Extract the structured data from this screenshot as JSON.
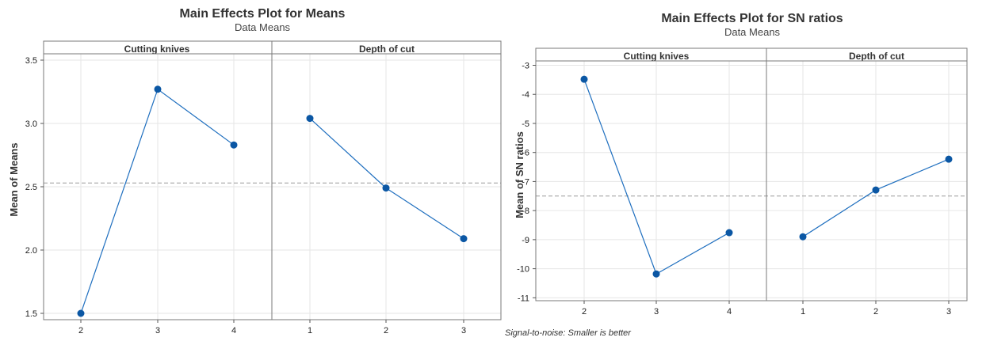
{
  "chart_data": [
    {
      "type": "line",
      "title": "Main Effects Plot for Means",
      "subtitle": "Data Means",
      "xlabel": "",
      "ylabel": "Mean of Means",
      "ylim": [
        1.45,
        3.55
      ],
      "yticks": [
        1.5,
        2.0,
        2.5,
        3.0,
        3.5
      ],
      "ytick_labels": [
        "1.5",
        "2.0",
        "2.5",
        "3.0",
        "3.5"
      ],
      "reference_line": 2.53,
      "grid": true,
      "panels": [
        {
          "name": "Cutting knives",
          "x": [
            "2",
            "3",
            "4"
          ],
          "y": [
            1.5,
            3.27,
            2.83
          ]
        },
        {
          "name": "Depth of cut",
          "x": [
            "1",
            "2",
            "3"
          ],
          "y": [
            3.04,
            2.49,
            2.09
          ]
        }
      ],
      "line_color": "#1f6fbf",
      "marker_color": "#0b57a4",
      "reference_color": "#9a9a9a"
    },
    {
      "type": "line",
      "title": "Main Effects Plot for SN ratios",
      "subtitle": "Data Means",
      "xlabel": "",
      "ylabel": "Mean of SN ratios",
      "ylim": [
        -11.1,
        -2.85
      ],
      "yticks": [
        -3,
        -4,
        -5,
        -6,
        -7,
        -8,
        -9,
        -10,
        -11
      ],
      "ytick_labels": [
        "-3",
        "-4",
        "-5",
        "-6",
        "-7",
        "-8",
        "-9",
        "-10",
        "-11"
      ],
      "reference_line": -7.5,
      "grid": true,
      "panels": [
        {
          "name": "Cutting knives",
          "x": [
            "2",
            "3",
            "4"
          ],
          "y": [
            -3.48,
            -10.18,
            -8.76
          ]
        },
        {
          "name": "Depth of cut",
          "x": [
            "1",
            "2",
            "3"
          ],
          "y": [
            -8.9,
            -7.29,
            -6.23
          ]
        }
      ],
      "line_color": "#1f6fbf",
      "marker_color": "#0b57a4",
      "reference_color": "#9a9a9a",
      "footnote": "Signal-to-noise: Smaller is better"
    }
  ]
}
